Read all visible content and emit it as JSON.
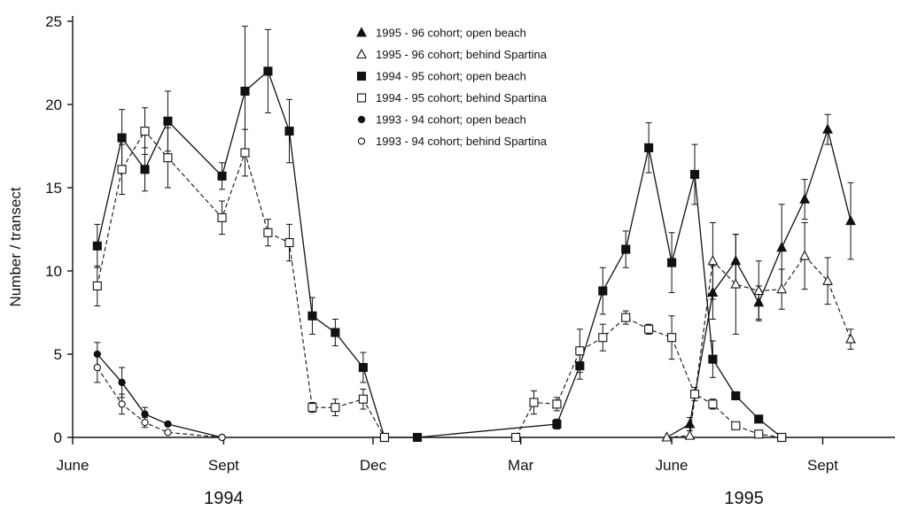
{
  "chart_data": {
    "type": "line",
    "title": "",
    "ylabel": "Number / transect",
    "xlabel": "",
    "ylim": [
      0,
      25
    ],
    "yticks": [
      0,
      5,
      10,
      15,
      20,
      25
    ],
    "x_range": [
      "1994-06-01",
      "1995-10-15"
    ],
    "xticks": [
      {
        "date": "1994-06-01",
        "label": "June"
      },
      {
        "date": "1994-09-01",
        "label": "Sept"
      },
      {
        "date": "1994-12-01",
        "label": "Dec"
      },
      {
        "date": "1995-03-01",
        "label": "Mar"
      },
      {
        "date": "1995-06-01",
        "label": "June"
      },
      {
        "date": "1995-09-01",
        "label": "Sept"
      }
    ],
    "year_labels": [
      {
        "date": "1994-09-01",
        "label": "1994"
      },
      {
        "date": "1995-07-15",
        "label": "1995"
      }
    ],
    "grid": false,
    "legend_position": "top-center",
    "series": [
      {
        "name": "1995 - 96  cohort; open beach",
        "marker": "triangle-filled",
        "line": "solid",
        "points": [
          {
            "x": "1995-05-29",
            "y": 0
          },
          {
            "x": "1995-06-12",
            "y": 0.8,
            "err": 0.4
          },
          {
            "x": "1995-06-26",
            "y": 8.7,
            "err": 1.6
          },
          {
            "x": "1995-07-10",
            "y": 10.6,
            "err": 1.6
          },
          {
            "x": "1995-07-24",
            "y": 8.1,
            "err": 1
          },
          {
            "x": "1995-08-07",
            "y": 11.4,
            "err": 2.6
          },
          {
            "x": "1995-08-21",
            "y": 14.3,
            "err": 1.2
          },
          {
            "x": "1995-09-04",
            "y": 18.5,
            "err": 0.9
          },
          {
            "x": "1995-09-18",
            "y": 13,
            "err": 2.3
          }
        ]
      },
      {
        "name": "1995 - 96  cohort; behind Spartina",
        "marker": "triangle-open",
        "line": "dashed",
        "points": [
          {
            "x": "1995-05-29",
            "y": 0
          },
          {
            "x": "1995-06-12",
            "y": 0.1
          },
          {
            "x": "1995-06-26",
            "y": 10.6,
            "err": 2.3
          },
          {
            "x": "1995-07-10",
            "y": 9.2,
            "err": 3
          },
          {
            "x": "1995-07-24",
            "y": 8.8,
            "err": 1.8
          },
          {
            "x": "1995-08-07",
            "y": 8.9,
            "err": 1.2
          },
          {
            "x": "1995-08-21",
            "y": 10.9,
            "err": 2
          },
          {
            "x": "1995-09-04",
            "y": 9.4,
            "err": 1.4
          },
          {
            "x": "1995-09-18",
            "y": 5.9,
            "err": 0.6
          }
        ]
      },
      {
        "name": "1994 - 95  cohort; open beach",
        "marker": "square-filled",
        "line": "solid",
        "points": [
          {
            "x": "1994-06-16",
            "y": 11.5,
            "err": 1.3
          },
          {
            "x": "1994-07-01",
            "y": 18,
            "err": 1.7
          },
          {
            "x": "1994-07-15",
            "y": 16.1,
            "err": 1.3
          },
          {
            "x": "1994-07-29",
            "y": 19,
            "err": 1.8
          },
          {
            "x": "1994-08-31",
            "y": 15.7,
            "err": 0.8
          },
          {
            "x": "1994-09-14",
            "y": 20.8,
            "err": 3.9
          },
          {
            "x": "1994-09-28",
            "y": 22,
            "err": 2.5
          },
          {
            "x": "1994-10-11",
            "y": 18.4,
            "err": 1.9
          },
          {
            "x": "1994-10-25",
            "y": 7.3,
            "err": 1.1
          },
          {
            "x": "1994-11-08",
            "y": 6.3,
            "err": 0.8
          },
          {
            "x": "1994-11-25",
            "y": 4.2,
            "err": 0.9
          },
          {
            "x": "1994-12-08",
            "y": 0
          },
          {
            "x": "1994-12-28",
            "y": 0
          },
          {
            "x": "1995-03-23",
            "y": 0.8,
            "err": 0.3
          },
          {
            "x": "1995-04-06",
            "y": 4.3,
            "err": 0.8
          },
          {
            "x": "1995-04-20",
            "y": 8.8,
            "err": 1.4
          },
          {
            "x": "1995-05-04",
            "y": 11.3,
            "err": 1.1
          },
          {
            "x": "1995-05-18",
            "y": 17.4,
            "err": 1.5
          },
          {
            "x": "1995-06-01",
            "y": 10.5,
            "err": 1.8
          },
          {
            "x": "1995-06-15",
            "y": 15.8,
            "err": 1.8
          },
          {
            "x": "1995-06-26",
            "y": 4.7,
            "err": 1.1
          },
          {
            "x": "1995-07-10",
            "y": 2.5
          },
          {
            "x": "1995-07-24",
            "y": 1.1
          },
          {
            "x": "1995-08-07",
            "y": 0
          }
        ]
      },
      {
        "name": "1994 - 95  cohort; behind Spartina",
        "marker": "square-open",
        "line": "dashed",
        "points": [
          {
            "x": "1994-06-16",
            "y": 9.1,
            "err": 1.2
          },
          {
            "x": "1994-07-01",
            "y": 16.1,
            "err": 1.5
          },
          {
            "x": "1994-07-15",
            "y": 18.4,
            "err": 1.4
          },
          {
            "x": "1994-07-29",
            "y": 16.8,
            "err": 1.8
          },
          {
            "x": "1994-08-31",
            "y": 13.2,
            "err": 1
          },
          {
            "x": "1994-09-14",
            "y": 17.1,
            "err": 1.4
          },
          {
            "x": "1994-09-28",
            "y": 12.3,
            "err": 0.8
          },
          {
            "x": "1994-10-11",
            "y": 11.7,
            "err": 1.1
          },
          {
            "x": "1994-10-25",
            "y": 1.8,
            "err": 0.3
          },
          {
            "x": "1994-11-08",
            "y": 1.8,
            "err": 0.5
          },
          {
            "x": "1994-11-25",
            "y": 2.3,
            "err": 0.6
          },
          {
            "x": "1994-12-08",
            "y": 0
          },
          {
            "x": "1995-02-26",
            "y": 0
          },
          {
            "x": "1995-03-09",
            "y": 2.1,
            "err": 0.7
          },
          {
            "x": "1995-03-23",
            "y": 2,
            "err": 0.4
          },
          {
            "x": "1995-04-06",
            "y": 5.2,
            "err": 1.3
          },
          {
            "x": "1995-04-20",
            "y": 6,
            "err": 0.8
          },
          {
            "x": "1995-05-04",
            "y": 7.2,
            "err": 0.4
          },
          {
            "x": "1995-05-18",
            "y": 6.5,
            "err": 0.3
          },
          {
            "x": "1995-06-01",
            "y": 6,
            "err": 1.3
          },
          {
            "x": "1995-06-15",
            "y": 2.6,
            "err": 0.4
          },
          {
            "x": "1995-06-26",
            "y": 2,
            "err": 0.3
          },
          {
            "x": "1995-07-10",
            "y": 0.7
          },
          {
            "x": "1995-07-24",
            "y": 0.2
          },
          {
            "x": "1995-08-07",
            "y": 0
          }
        ]
      },
      {
        "name": "1993 - 94  cohort; open beach",
        "marker": "circle-filled",
        "line": "solid",
        "points": [
          {
            "x": "1994-06-16",
            "y": 5,
            "err": 0.7
          },
          {
            "x": "1994-07-01",
            "y": 3.3,
            "err": 0.9
          },
          {
            "x": "1994-07-15",
            "y": 1.4,
            "err": 0.4
          },
          {
            "x": "1994-07-29",
            "y": 0.8
          },
          {
            "x": "1994-08-31",
            "y": 0
          }
        ]
      },
      {
        "name": "1993 - 94  cohort; behind Spartina",
        "marker": "circle-open",
        "line": "dashed",
        "points": [
          {
            "x": "1994-06-16",
            "y": 4.2,
            "err": 0.9
          },
          {
            "x": "1994-07-01",
            "y": 2,
            "err": 0.6
          },
          {
            "x": "1994-07-15",
            "y": 0.9,
            "err": 0.3
          },
          {
            "x": "1994-07-29",
            "y": 0.3
          },
          {
            "x": "1994-08-31",
            "y": 0
          }
        ]
      }
    ]
  }
}
